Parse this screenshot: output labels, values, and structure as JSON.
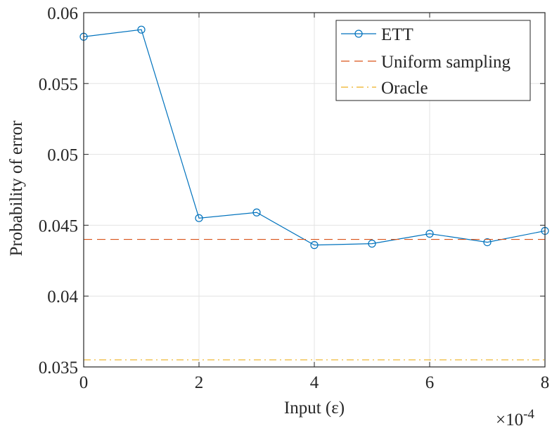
{
  "chart_data": {
    "type": "line",
    "xlabel": "Input (ε)",
    "ylabel": "Probability of error",
    "x_exponent_label": "×10",
    "x_exponent_power": "-4",
    "xlim": [
      0,
      8
    ],
    "ylim": [
      0.035,
      0.06
    ],
    "x_unit_scale": 0.0001,
    "xticks": [
      0,
      2,
      4,
      6,
      8
    ],
    "xtick_labels": [
      "0",
      "2",
      "4",
      "6",
      "8"
    ],
    "yticks": [
      0.035,
      0.04,
      0.045,
      0.05,
      0.055,
      0.06
    ],
    "ytick_labels": [
      "0.035",
      "0.04",
      "0.045",
      "0.05",
      "0.055",
      "0.06"
    ],
    "grid": true,
    "legend_position": "top-right",
    "series": [
      {
        "name": "ETT",
        "style": "solid",
        "marker": "circle",
        "color": "#0072BD",
        "x": [
          0,
          1,
          2,
          3,
          4,
          5,
          6,
          7,
          8
        ],
        "y": [
          0.0583,
          0.0588,
          0.0455,
          0.0459,
          0.0436,
          0.0437,
          0.0444,
          0.0438,
          0.0446
        ]
      },
      {
        "name": "Uniform sampling",
        "style": "dashed",
        "color": "#D95319",
        "x": [
          0,
          8
        ],
        "y": [
          0.044,
          0.044
        ]
      },
      {
        "name": "Oracle",
        "style": "dashdot",
        "color": "#EDB120",
        "x": [
          0,
          8
        ],
        "y": [
          0.0355,
          0.0355
        ]
      }
    ]
  }
}
